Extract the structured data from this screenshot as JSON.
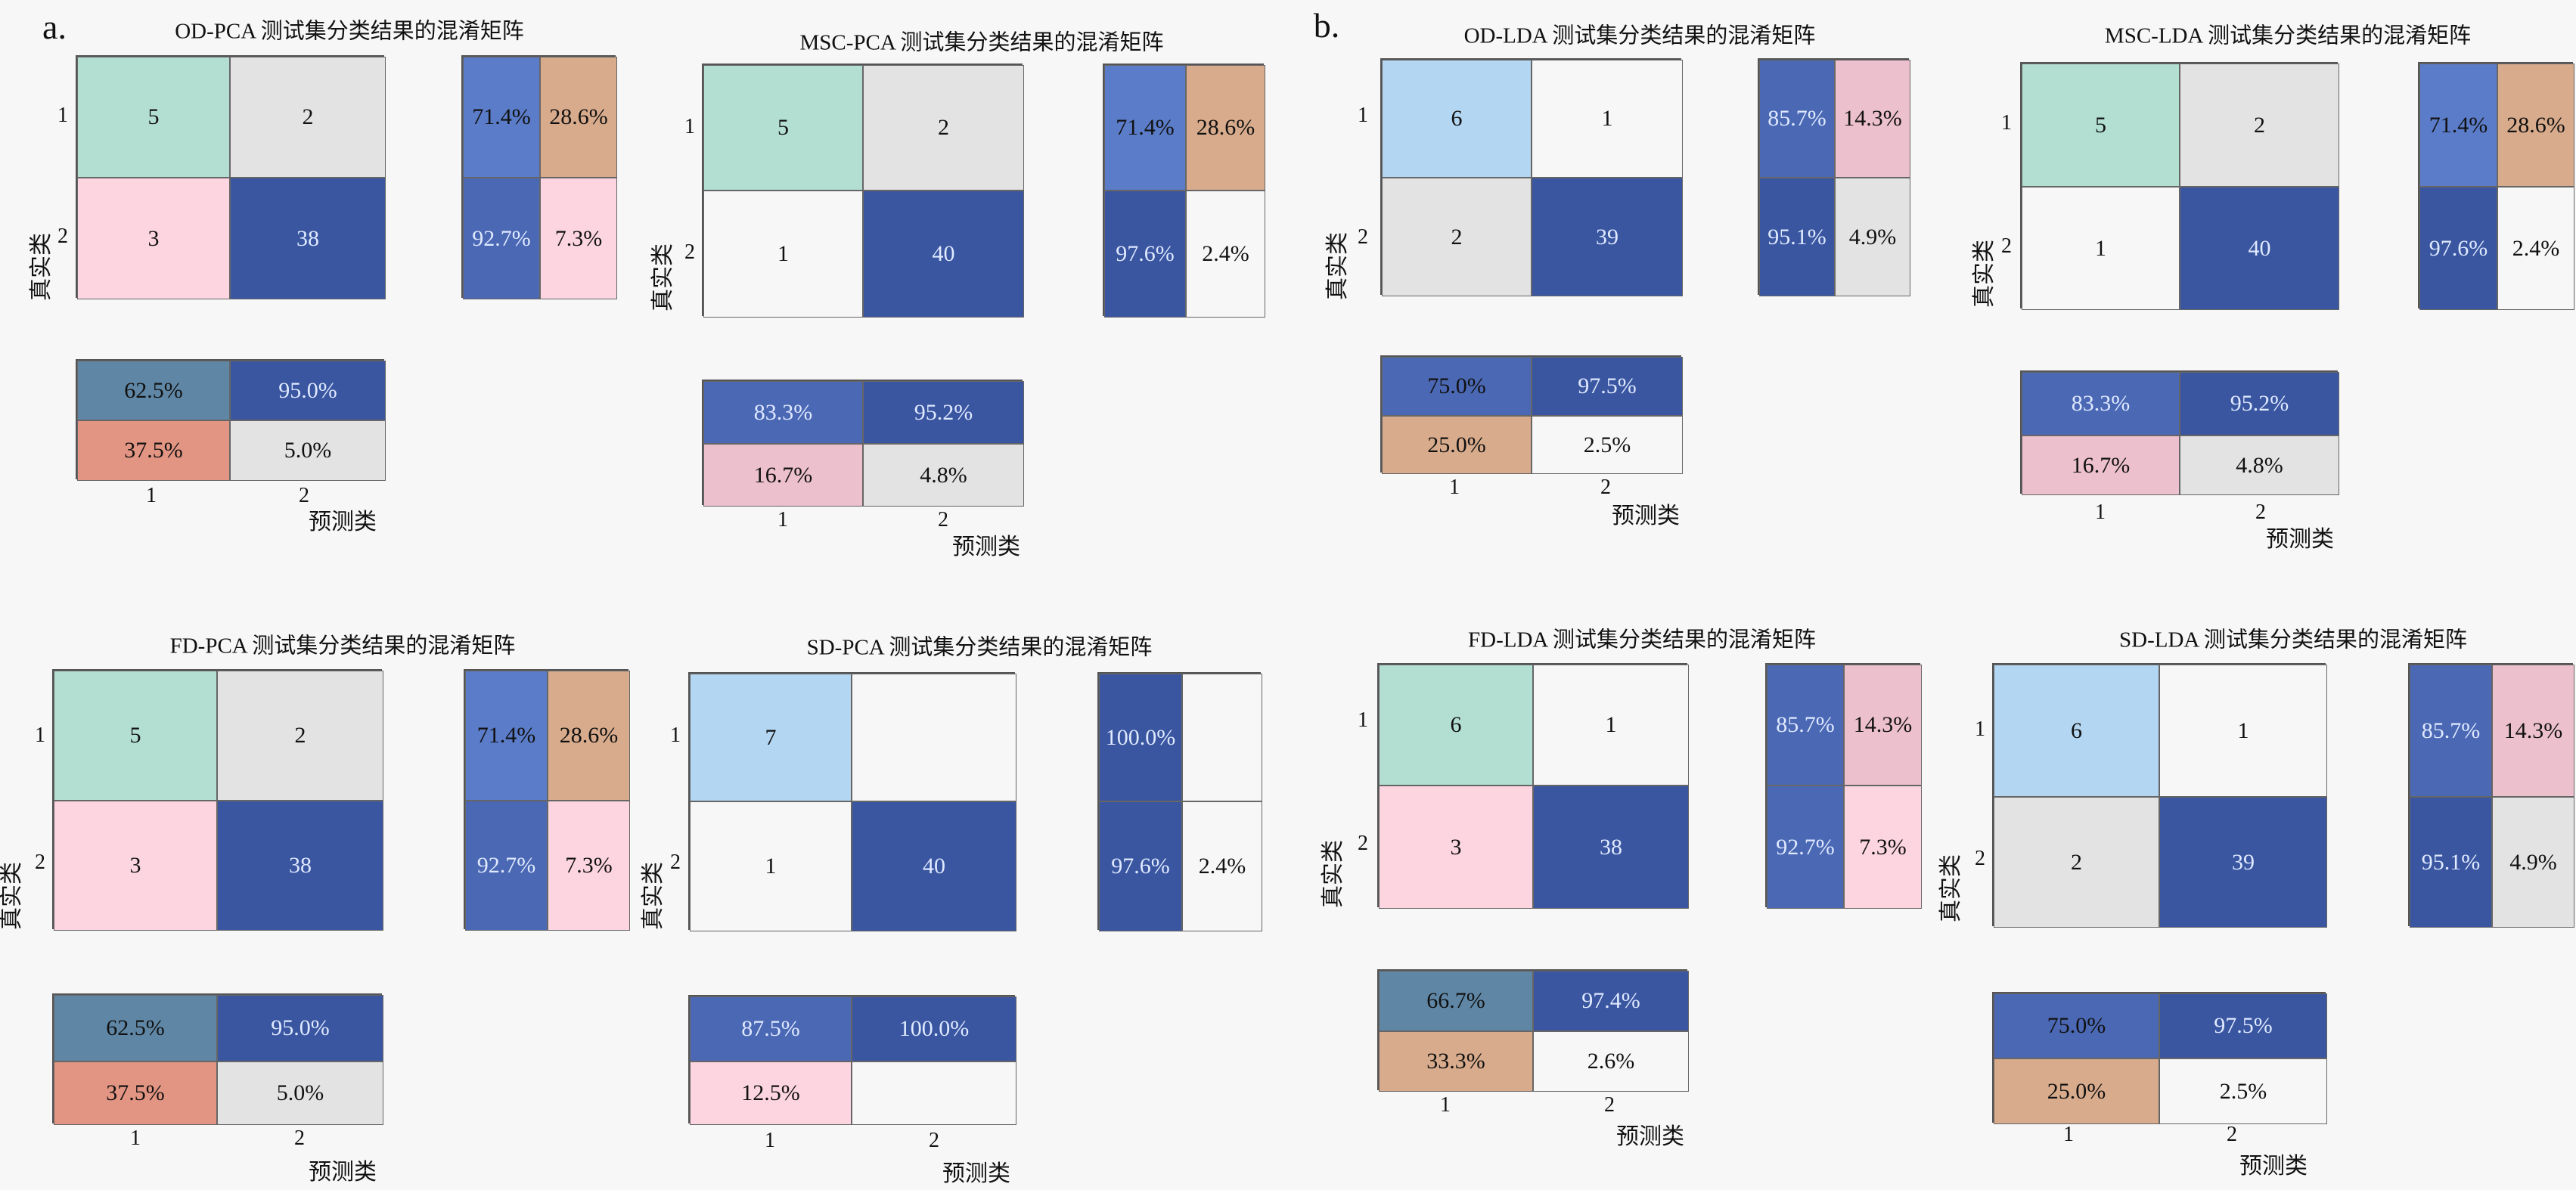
{
  "panel_letters": [
    "a.",
    "b."
  ],
  "palette": {
    "mint": "#b3dfd2",
    "lightblue": "#b3d6f2",
    "grey": "#e3e3e3",
    "white": "#f7f7f7",
    "pink": "#fdd5e0",
    "pink2": "#ecc0cd",
    "tan": "#d8ab8c",
    "salmon": "#e39583",
    "steel": "#5f87a5",
    "blue_mid": "#5b7cc8",
    "blue2": "#4b68b4",
    "dark": "#3a56a0",
    "text_dark": "#111111",
    "text_light": "#dfe9ff"
  },
  "chart_data": [
    {
      "type": "heatmap",
      "title": "OD-PCA 测试集分类结果的混淆矩阵",
      "ylabel": "真实类",
      "xlabel": "预测类",
      "row_ticks": [
        "1",
        "2"
      ],
      "col_ticks": [
        "1",
        "2"
      ],
      "matrix": [
        [
          {
            "v": "5",
            "c": "mint"
          },
          {
            "v": "2",
            "c": "grey"
          }
        ],
        [
          {
            "v": "3",
            "c": "pink"
          },
          {
            "v": "38",
            "c": "dark",
            "t": "light"
          }
        ]
      ],
      "row_summary": [
        [
          {
            "v": "71.4%",
            "c": "blue_mid"
          },
          {
            "v": "28.6%",
            "c": "tan"
          }
        ],
        [
          {
            "v": "92.7%",
            "c": "blue2",
            "t": "light"
          },
          {
            "v": "7.3%",
            "c": "pink"
          }
        ]
      ],
      "col_summary": [
        [
          {
            "v": "62.5%",
            "c": "steel"
          },
          {
            "v": "95.0%",
            "c": "dark",
            "t": "light"
          }
        ],
        [
          {
            "v": "37.5%",
            "c": "salmon"
          },
          {
            "v": "5.0%",
            "c": "grey"
          }
        ]
      ]
    },
    {
      "type": "heatmap",
      "title": "MSC-PCA 测试集分类结果的混淆矩阵",
      "ylabel": "真实类",
      "xlabel": "预测类",
      "row_ticks": [
        "1",
        "2"
      ],
      "col_ticks": [
        "1",
        "2"
      ],
      "matrix": [
        [
          {
            "v": "5",
            "c": "mint"
          },
          {
            "v": "2",
            "c": "grey"
          }
        ],
        [
          {
            "v": "1",
            "c": "white"
          },
          {
            "v": "40",
            "c": "dark",
            "t": "light"
          }
        ]
      ],
      "row_summary": [
        [
          {
            "v": "71.4%",
            "c": "blue_mid"
          },
          {
            "v": "28.6%",
            "c": "tan"
          }
        ],
        [
          {
            "v": "97.6%",
            "c": "dark",
            "t": "light"
          },
          {
            "v": "2.4%",
            "c": "white"
          }
        ]
      ],
      "col_summary": [
        [
          {
            "v": "83.3%",
            "c": "blue2",
            "t": "light"
          },
          {
            "v": "95.2%",
            "c": "dark",
            "t": "light"
          }
        ],
        [
          {
            "v": "16.7%",
            "c": "pink2"
          },
          {
            "v": "4.8%",
            "c": "grey"
          }
        ]
      ]
    },
    {
      "type": "heatmap",
      "title": "FD-PCA 测试集分类结果的混淆矩阵",
      "ylabel": "真实类",
      "xlabel": "预测类",
      "row_ticks": [
        "1",
        "2"
      ],
      "col_ticks": [
        "1",
        "2"
      ],
      "matrix": [
        [
          {
            "v": "5",
            "c": "mint"
          },
          {
            "v": "2",
            "c": "grey"
          }
        ],
        [
          {
            "v": "3",
            "c": "pink"
          },
          {
            "v": "38",
            "c": "dark",
            "t": "light"
          }
        ]
      ],
      "row_summary": [
        [
          {
            "v": "71.4%",
            "c": "blue_mid"
          },
          {
            "v": "28.6%",
            "c": "tan"
          }
        ],
        [
          {
            "v": "92.7%",
            "c": "blue2",
            "t": "light"
          },
          {
            "v": "7.3%",
            "c": "pink"
          }
        ]
      ],
      "col_summary": [
        [
          {
            "v": "62.5%",
            "c": "steel"
          },
          {
            "v": "95.0%",
            "c": "dark",
            "t": "light"
          }
        ],
        [
          {
            "v": "37.5%",
            "c": "salmon"
          },
          {
            "v": "5.0%",
            "c": "grey"
          }
        ]
      ]
    },
    {
      "type": "heatmap",
      "title": "SD-PCA 测试集分类结果的混淆矩阵",
      "ylabel": "真实类",
      "xlabel": "预测类",
      "row_ticks": [
        "1",
        "2"
      ],
      "col_ticks": [
        "1",
        "2"
      ],
      "matrix": [
        [
          {
            "v": "7",
            "c": "lightblue"
          },
          {
            "v": "",
            "c": "white"
          }
        ],
        [
          {
            "v": "1",
            "c": "white"
          },
          {
            "v": "40",
            "c": "dark",
            "t": "light"
          }
        ]
      ],
      "row_summary": [
        [
          {
            "v": "100.0%",
            "c": "dark",
            "t": "light"
          },
          {
            "v": "",
            "c": "white"
          }
        ],
        [
          {
            "v": "97.6%",
            "c": "dark",
            "t": "light"
          },
          {
            "v": "2.4%",
            "c": "white"
          }
        ]
      ],
      "col_summary": [
        [
          {
            "v": "87.5%",
            "c": "blue2",
            "t": "light"
          },
          {
            "v": "100.0%",
            "c": "dark",
            "t": "light"
          }
        ],
        [
          {
            "v": "12.5%",
            "c": "pink"
          },
          {
            "v": "",
            "c": "white"
          }
        ]
      ]
    },
    {
      "type": "heatmap",
      "title": "OD-LDA 测试集分类结果的混淆矩阵",
      "ylabel": "真实类",
      "xlabel": "预测类",
      "row_ticks": [
        "1",
        "2"
      ],
      "col_ticks": [
        "1",
        "2"
      ],
      "matrix": [
        [
          {
            "v": "6",
            "c": "lightblue"
          },
          {
            "v": "1",
            "c": "white"
          }
        ],
        [
          {
            "v": "2",
            "c": "grey"
          },
          {
            "v": "39",
            "c": "dark",
            "t": "light"
          }
        ]
      ],
      "row_summary": [
        [
          {
            "v": "85.7%",
            "c": "blue2",
            "t": "light"
          },
          {
            "v": "14.3%",
            "c": "pink2"
          }
        ],
        [
          {
            "v": "95.1%",
            "c": "dark",
            "t": "light"
          },
          {
            "v": "4.9%",
            "c": "grey"
          }
        ]
      ],
      "col_summary": [
        [
          {
            "v": "75.0%",
            "c": "blue2"
          },
          {
            "v": "97.5%",
            "c": "dark",
            "t": "light"
          }
        ],
        [
          {
            "v": "25.0%",
            "c": "tan"
          },
          {
            "v": "2.5%",
            "c": "white"
          }
        ]
      ]
    },
    {
      "type": "heatmap",
      "title": "MSC-LDA 测试集分类结果的混淆矩阵",
      "ylabel": "真实类",
      "xlabel": "预测类",
      "row_ticks": [
        "1",
        "2"
      ],
      "col_ticks": [
        "1",
        "2"
      ],
      "matrix": [
        [
          {
            "v": "5",
            "c": "mint"
          },
          {
            "v": "2",
            "c": "grey"
          }
        ],
        [
          {
            "v": "1",
            "c": "white"
          },
          {
            "v": "40",
            "c": "dark",
            "t": "light"
          }
        ]
      ],
      "row_summary": [
        [
          {
            "v": "71.4%",
            "c": "blue_mid"
          },
          {
            "v": "28.6%",
            "c": "tan"
          }
        ],
        [
          {
            "v": "97.6%",
            "c": "dark",
            "t": "light"
          },
          {
            "v": "2.4%",
            "c": "white"
          }
        ]
      ],
      "col_summary": [
        [
          {
            "v": "83.3%",
            "c": "blue2",
            "t": "light"
          },
          {
            "v": "95.2%",
            "c": "dark",
            "t": "light"
          }
        ],
        [
          {
            "v": "16.7%",
            "c": "pink2"
          },
          {
            "v": "4.8%",
            "c": "grey"
          }
        ]
      ]
    },
    {
      "type": "heatmap",
      "title": "FD-LDA 测试集分类结果的混淆矩阵",
      "ylabel": "真实类",
      "xlabel": "预测类",
      "row_ticks": [
        "1",
        "2"
      ],
      "col_ticks": [
        "1",
        "2"
      ],
      "matrix": [
        [
          {
            "v": "6",
            "c": "mint"
          },
          {
            "v": "1",
            "c": "white"
          }
        ],
        [
          {
            "v": "3",
            "c": "pink"
          },
          {
            "v": "38",
            "c": "dark",
            "t": "light"
          }
        ]
      ],
      "row_summary": [
        [
          {
            "v": "85.7%",
            "c": "blue2",
            "t": "light"
          },
          {
            "v": "14.3%",
            "c": "pink2"
          }
        ],
        [
          {
            "v": "92.7%",
            "c": "blue2",
            "t": "light"
          },
          {
            "v": "7.3%",
            "c": "pink"
          }
        ]
      ],
      "col_summary": [
        [
          {
            "v": "66.7%",
            "c": "steel"
          },
          {
            "v": "97.4%",
            "c": "dark",
            "t": "light"
          }
        ],
        [
          {
            "v": "33.3%",
            "c": "tan"
          },
          {
            "v": "2.6%",
            "c": "white"
          }
        ]
      ]
    },
    {
      "type": "heatmap",
      "title": "SD-LDA 测试集分类结果的混淆矩阵",
      "ylabel": "真实类",
      "xlabel": "预测类",
      "row_ticks": [
        "1",
        "2"
      ],
      "col_ticks": [
        "1",
        "2"
      ],
      "matrix": [
        [
          {
            "v": "6",
            "c": "lightblue"
          },
          {
            "v": "1",
            "c": "white"
          }
        ],
        [
          {
            "v": "2",
            "c": "grey"
          },
          {
            "v": "39",
            "c": "dark",
            "t": "light"
          }
        ]
      ],
      "row_summary": [
        [
          {
            "v": "85.7%",
            "c": "blue2",
            "t": "light"
          },
          {
            "v": "14.3%",
            "c": "pink2"
          }
        ],
        [
          {
            "v": "95.1%",
            "c": "dark",
            "t": "light"
          },
          {
            "v": "4.9%",
            "c": "grey"
          }
        ]
      ],
      "col_summary": [
        [
          {
            "v": "75.0%",
            "c": "blue2"
          },
          {
            "v": "97.5%",
            "c": "dark",
            "t": "light"
          }
        ],
        [
          {
            "v": "25.0%",
            "c": "tan"
          },
          {
            "v": "2.5%",
            "c": "white"
          }
        ]
      ]
    }
  ]
}
